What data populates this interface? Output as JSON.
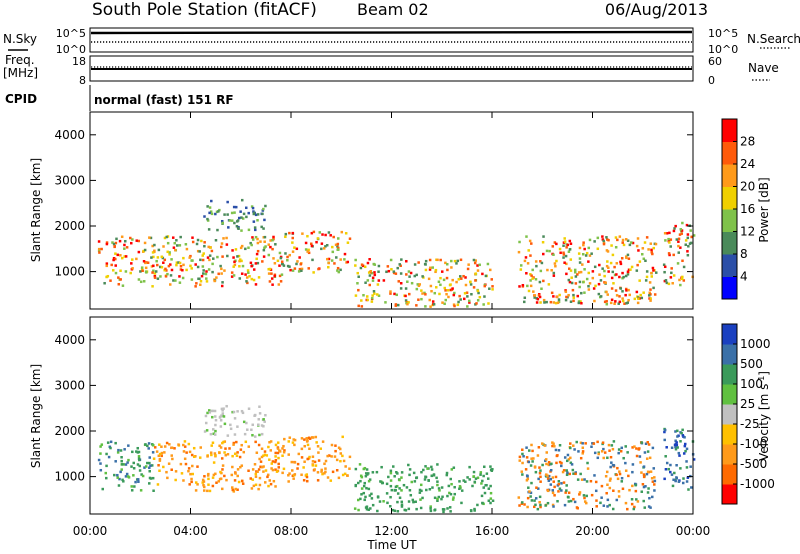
{
  "header": {
    "station": "South Pole Station (fitACF)",
    "beam": "Beam 02",
    "date": "06/Aug/2013"
  },
  "param_panels": {
    "nsky_label": "N.Sky",
    "nsky_ticks": [
      "10^5",
      "10^0"
    ],
    "nsearch_label": "N.Search",
    "nsearch_ticks": [
      "10^5",
      "10^0"
    ],
    "freq_label": "Freq.",
    "freq_unit": "[MHz]",
    "freq_ticks": [
      "18",
      "8"
    ],
    "nave_label": "Nave",
    "nave_ticks": [
      "60",
      "0"
    ],
    "cpid_label": "CPID",
    "cpid_value": "normal (fast) 151 RF"
  },
  "colors": {
    "power": [
      "#0000ff",
      "#2b4fa8",
      "#4a8a5a",
      "#7fc24a",
      "#f0d000",
      "#ff9a1a",
      "#ff5a0a",
      "#ff0000"
    ],
    "velocity": [
      "#ff0000",
      "#ff6a00",
      "#ff9a1a",
      "#ffc000",
      "#c0c0c0",
      "#60c040",
      "#3a9a5a",
      "#3a70a8",
      "#1a40c0"
    ]
  },
  "chart_data": [
    {
      "type": "heatmap",
      "name": "power",
      "ylabel": "Slant Range [km]",
      "ylim": [
        180,
        4500
      ],
      "yticks": [
        "1000",
        "2000",
        "3000",
        "4000"
      ],
      "xlim_hours": [
        0,
        24
      ],
      "colorbar_label": "Power [dB]",
      "colorbar_ticks": [
        "4",
        "8",
        "12",
        "16",
        "20",
        "24",
        "28"
      ],
      "features": [
        {
          "t": [
            0.3,
            3.0
          ],
          "r": [
            700,
            1800
          ],
          "level": "mixed 8-28 dB"
        },
        {
          "t": [
            3.0,
            7.6
          ],
          "r": [
            700,
            1800
          ],
          "level": "mixed 8-24 dB"
        },
        {
          "t": [
            4.5,
            7.0
          ],
          "r": [
            1900,
            2600
          ],
          "level": "low 4-12 dB"
        },
        {
          "t": [
            7.5,
            10.3
          ],
          "r": [
            1000,
            1900
          ],
          "level": "mixed 8-24 dB"
        },
        {
          "t": [
            10.5,
            16.0
          ],
          "r": [
            250,
            1300
          ],
          "level": "mixed 8-28 dB"
        },
        {
          "t": [
            17.0,
            22.5
          ],
          "r": [
            300,
            1800
          ],
          "level": "mixed 8-20 dB"
        },
        {
          "t": [
            22.8,
            24.0
          ],
          "r": [
            700,
            2100
          ],
          "level": "mixed 4-24 dB"
        }
      ]
    },
    {
      "type": "heatmap",
      "name": "velocity",
      "ylabel": "Slant Range [km]",
      "xlabel": "Time UT",
      "ylim": [
        180,
        4500
      ],
      "yticks": [
        "1000",
        "2000",
        "3000",
        "4000"
      ],
      "xticks": [
        "00:00",
        "04:00",
        "08:00",
        "12:00",
        "16:00",
        "20:00",
        "00:00"
      ],
      "xlim_hours": [
        0,
        24
      ],
      "colorbar_label": "Velocity [m s^-1]",
      "colorbar_ticks": [
        "1000",
        "500",
        "100",
        "25",
        "-25",
        "-100",
        "-500",
        "-1000"
      ],
      "features": [
        {
          "t": [
            0.3,
            2.5
          ],
          "r": [
            700,
            1800
          ],
          "level": "+100 to +500 m/s"
        },
        {
          "t": [
            2.5,
            7.5
          ],
          "r": [
            700,
            1800
          ],
          "level": "-100 to -500 m/s"
        },
        {
          "t": [
            4.5,
            7.0
          ],
          "r": [
            1900,
            2600
          ],
          "level": "-25 to 25 m/s"
        },
        {
          "t": [
            7.5,
            10.3
          ],
          "r": [
            900,
            1900
          ],
          "level": "-100 to -500 m/s"
        },
        {
          "t": [
            10.5,
            16.0
          ],
          "r": [
            250,
            1300
          ],
          "level": "+25 to +100 m/s"
        },
        {
          "t": [
            17.0,
            22.5
          ],
          "r": [
            300,
            1800
          ],
          "level": "mixed -500 to +500 m/s"
        },
        {
          "t": [
            22.8,
            24.0
          ],
          "r": [
            700,
            2100
          ],
          "level": "+500 to +1000 m/s"
        }
      ]
    }
  ]
}
